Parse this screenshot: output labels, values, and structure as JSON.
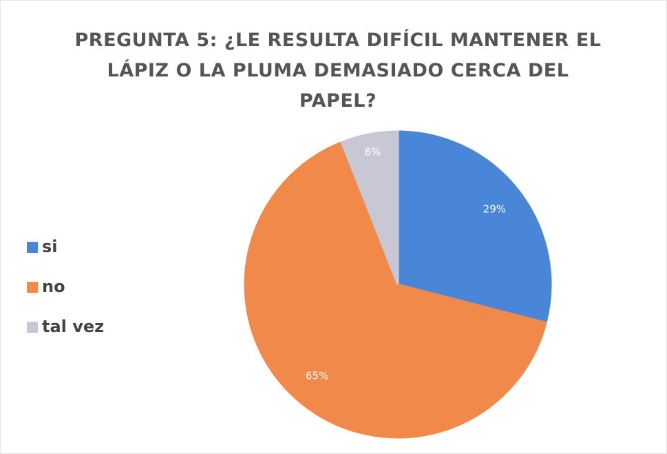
{
  "chart_data": {
    "type": "pie",
    "title": "PREGUNTA 5: ¿LE RESULTA DIFÍCIL MANTENER EL LÁPIZ O LA PLUMA DEMASIADO CERCA DEL PAPEL?",
    "categories": [
      "si",
      "no",
      "tal vez"
    ],
    "values": [
      29,
      65,
      6
    ],
    "value_labels": [
      "29%",
      "65%",
      "6%"
    ],
    "colors": [
      "#4a86d8",
      "#f0894a",
      "#c8c8d4"
    ],
    "legend": "left"
  }
}
